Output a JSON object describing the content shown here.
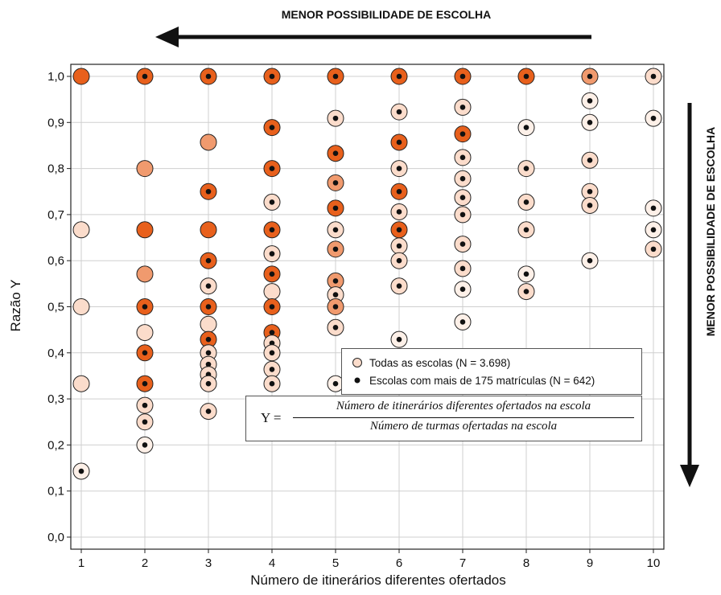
{
  "top_annotation": "MENOR POSSIBILIDADE DE ESCOLHA",
  "side_annotation": "MENOR POSSIBILIDADE DE ESCOLHA",
  "formula": {
    "lhs": "Y =",
    "numerator": "Número de itinerários diferentes ofertados na escola",
    "denominator": "Número de turmas ofertadas na escola"
  },
  "colors": {
    "dark_orange": "#E8601C",
    "mid_orange": "#F09A6E",
    "light_peach": "#FBDCCB",
    "very_light": "#FDF0E8",
    "dot": "#111111"
  },
  "chart_data": {
    "type": "scatter",
    "xlabel": "Número de itinerários diferentes ofertados",
    "ylabel": "Razão Y",
    "xlim": [
      0.8,
      10.2
    ],
    "ylim": [
      0.0,
      1.0
    ],
    "x_ticks": [
      "1",
      "2",
      "3",
      "4",
      "5",
      "6",
      "7",
      "8",
      "9",
      "10"
    ],
    "y_ticks": [
      "0,0",
      "0,1",
      "0,2",
      "0,3",
      "0,4",
      "0,5",
      "0,6",
      "0,7",
      "0,8",
      "0,9",
      "1,0"
    ],
    "grid": true,
    "legend": [
      {
        "label": "Todas as escolas (N = 3.698)",
        "marker": "open-circle"
      },
      {
        "label": "Escolas com mais de 175 matrículas (N = 642)",
        "marker": "dot"
      }
    ],
    "legend_position": "lower-right",
    "points": [
      {
        "x": 1,
        "y": 1.0,
        "c": "dark",
        "dot": false
      },
      {
        "x": 1,
        "y": 0.667,
        "c": "light",
        "dot": false
      },
      {
        "x": 1,
        "y": 0.5,
        "c": "light",
        "dot": false
      },
      {
        "x": 1,
        "y": 0.333,
        "c": "light",
        "dot": false
      },
      {
        "x": 1,
        "y": 0.143,
        "c": "white",
        "dot": true
      },
      {
        "x": 2,
        "y": 1.0,
        "c": "dark",
        "dot": true
      },
      {
        "x": 2,
        "y": 0.8,
        "c": "mid",
        "dot": false
      },
      {
        "x": 2,
        "y": 0.667,
        "c": "dark",
        "dot": false
      },
      {
        "x": 2,
        "y": 0.571,
        "c": "mid",
        "dot": false
      },
      {
        "x": 2,
        "y": 0.5,
        "c": "dark",
        "dot": true
      },
      {
        "x": 2,
        "y": 0.444,
        "c": "light",
        "dot": false
      },
      {
        "x": 2,
        "y": 0.4,
        "c": "dark",
        "dot": true
      },
      {
        "x": 2,
        "y": 0.333,
        "c": "dark",
        "dot": true
      },
      {
        "x": 2,
        "y": 0.286,
        "c": "light",
        "dot": true
      },
      {
        "x": 2,
        "y": 0.25,
        "c": "light",
        "dot": true
      },
      {
        "x": 2,
        "y": 0.2,
        "c": "white",
        "dot": true
      },
      {
        "x": 3,
        "y": 1.0,
        "c": "dark",
        "dot": true
      },
      {
        "x": 3,
        "y": 0.857,
        "c": "mid",
        "dot": false
      },
      {
        "x": 3,
        "y": 0.75,
        "c": "dark",
        "dot": true
      },
      {
        "x": 3,
        "y": 0.667,
        "c": "dark",
        "dot": false
      },
      {
        "x": 3,
        "y": 0.6,
        "c": "dark",
        "dot": true
      },
      {
        "x": 3,
        "y": 0.545,
        "c": "light",
        "dot": true
      },
      {
        "x": 3,
        "y": 0.5,
        "c": "dark",
        "dot": true
      },
      {
        "x": 3,
        "y": 0.462,
        "c": "light",
        "dot": false
      },
      {
        "x": 3,
        "y": 0.429,
        "c": "dark",
        "dot": true
      },
      {
        "x": 3,
        "y": 0.4,
        "c": "light",
        "dot": true
      },
      {
        "x": 3,
        "y": 0.375,
        "c": "light",
        "dot": true
      },
      {
        "x": 3,
        "y": 0.353,
        "c": "light",
        "dot": true
      },
      {
        "x": 3,
        "y": 0.333,
        "c": "light",
        "dot": true
      },
      {
        "x": 3,
        "y": 0.273,
        "c": "light",
        "dot": true
      },
      {
        "x": 4,
        "y": 1.0,
        "c": "dark",
        "dot": true
      },
      {
        "x": 4,
        "y": 0.889,
        "c": "dark",
        "dot": true
      },
      {
        "x": 4,
        "y": 0.8,
        "c": "dark",
        "dot": true
      },
      {
        "x": 4,
        "y": 0.727,
        "c": "light",
        "dot": true
      },
      {
        "x": 4,
        "y": 0.667,
        "c": "dark",
        "dot": true
      },
      {
        "x": 4,
        "y": 0.615,
        "c": "light",
        "dot": true
      },
      {
        "x": 4,
        "y": 0.571,
        "c": "dark",
        "dot": true
      },
      {
        "x": 4,
        "y": 0.533,
        "c": "light",
        "dot": false
      },
      {
        "x": 4,
        "y": 0.5,
        "c": "dark",
        "dot": true
      },
      {
        "x": 4,
        "y": 0.444,
        "c": "dark",
        "dot": true
      },
      {
        "x": 4,
        "y": 0.421,
        "c": "light",
        "dot": true
      },
      {
        "x": 4,
        "y": 0.4,
        "c": "light",
        "dot": true
      },
      {
        "x": 4,
        "y": 0.364,
        "c": "light",
        "dot": true
      },
      {
        "x": 4,
        "y": 0.333,
        "c": "light",
        "dot": true
      },
      {
        "x": 4,
        "y": 0.25,
        "c": "white",
        "dot": true
      },
      {
        "x": 5,
        "y": 1.0,
        "c": "dark",
        "dot": true
      },
      {
        "x": 5,
        "y": 0.909,
        "c": "light",
        "dot": true
      },
      {
        "x": 5,
        "y": 0.833,
        "c": "dark",
        "dot": true
      },
      {
        "x": 5,
        "y": 0.769,
        "c": "mid",
        "dot": true
      },
      {
        "x": 5,
        "y": 0.714,
        "c": "dark",
        "dot": true
      },
      {
        "x": 5,
        "y": 0.667,
        "c": "light",
        "dot": true
      },
      {
        "x": 5,
        "y": 0.625,
        "c": "mid",
        "dot": true
      },
      {
        "x": 5,
        "y": 0.556,
        "c": "mid",
        "dot": true
      },
      {
        "x": 5,
        "y": 0.526,
        "c": "light",
        "dot": true
      },
      {
        "x": 5,
        "y": 0.5,
        "c": "mid",
        "dot": true
      },
      {
        "x": 5,
        "y": 0.455,
        "c": "light",
        "dot": true
      },
      {
        "x": 5,
        "y": 0.333,
        "c": "white",
        "dot": true
      },
      {
        "x": 6,
        "y": 1.0,
        "c": "dark",
        "dot": true
      },
      {
        "x": 6,
        "y": 0.923,
        "c": "light",
        "dot": true
      },
      {
        "x": 6,
        "y": 0.857,
        "c": "dark",
        "dot": true
      },
      {
        "x": 6,
        "y": 0.8,
        "c": "light",
        "dot": true
      },
      {
        "x": 6,
        "y": 0.75,
        "c": "dark",
        "dot": true
      },
      {
        "x": 6,
        "y": 0.706,
        "c": "light",
        "dot": true
      },
      {
        "x": 6,
        "y": 0.667,
        "c": "dark",
        "dot": true
      },
      {
        "x": 6,
        "y": 0.632,
        "c": "light",
        "dot": true
      },
      {
        "x": 6,
        "y": 0.6,
        "c": "light",
        "dot": true
      },
      {
        "x": 6,
        "y": 0.545,
        "c": "light",
        "dot": true
      },
      {
        "x": 6,
        "y": 0.429,
        "c": "white",
        "dot": true
      },
      {
        "x": 7,
        "y": 1.0,
        "c": "dark",
        "dot": true
      },
      {
        "x": 7,
        "y": 0.933,
        "c": "light",
        "dot": true
      },
      {
        "x": 7,
        "y": 0.875,
        "c": "dark",
        "dot": true
      },
      {
        "x": 7,
        "y": 0.824,
        "c": "light",
        "dot": true
      },
      {
        "x": 7,
        "y": 0.778,
        "c": "light",
        "dot": true
      },
      {
        "x": 7,
        "y": 0.737,
        "c": "light",
        "dot": true
      },
      {
        "x": 7,
        "y": 0.7,
        "c": "light",
        "dot": true
      },
      {
        "x": 7,
        "y": 0.636,
        "c": "light",
        "dot": true
      },
      {
        "x": 7,
        "y": 0.583,
        "c": "light",
        "dot": true
      },
      {
        "x": 7,
        "y": 0.538,
        "c": "white",
        "dot": true
      },
      {
        "x": 7,
        "y": 0.467,
        "c": "white",
        "dot": true
      },
      {
        "x": 8,
        "y": 1.0,
        "c": "dark",
        "dot": true
      },
      {
        "x": 8,
        "y": 0.889,
        "c": "white",
        "dot": true
      },
      {
        "x": 8,
        "y": 0.8,
        "c": "light",
        "dot": true
      },
      {
        "x": 8,
        "y": 0.727,
        "c": "light",
        "dot": true
      },
      {
        "x": 8,
        "y": 0.667,
        "c": "light",
        "dot": true
      },
      {
        "x": 8,
        "y": 0.571,
        "c": "white",
        "dot": true
      },
      {
        "x": 8,
        "y": 0.533,
        "c": "light",
        "dot": true
      },
      {
        "x": 9,
        "y": 1.0,
        "c": "mid",
        "dot": true
      },
      {
        "x": 9,
        "y": 0.947,
        "c": "white",
        "dot": true
      },
      {
        "x": 9,
        "y": 0.9,
        "c": "white",
        "dot": true
      },
      {
        "x": 9,
        "y": 0.818,
        "c": "light",
        "dot": true
      },
      {
        "x": 9,
        "y": 0.75,
        "c": "light",
        "dot": true
      },
      {
        "x": 9,
        "y": 0.72,
        "c": "light",
        "dot": true
      },
      {
        "x": 9,
        "y": 0.6,
        "c": "white",
        "dot": true
      },
      {
        "x": 10,
        "y": 1.0,
        "c": "light",
        "dot": true
      },
      {
        "x": 10,
        "y": 0.909,
        "c": "white",
        "dot": true
      },
      {
        "x": 10,
        "y": 0.714,
        "c": "white",
        "dot": true
      },
      {
        "x": 10,
        "y": 0.667,
        "c": "white",
        "dot": true
      },
      {
        "x": 10,
        "y": 0.625,
        "c": "light",
        "dot": true
      }
    ]
  }
}
